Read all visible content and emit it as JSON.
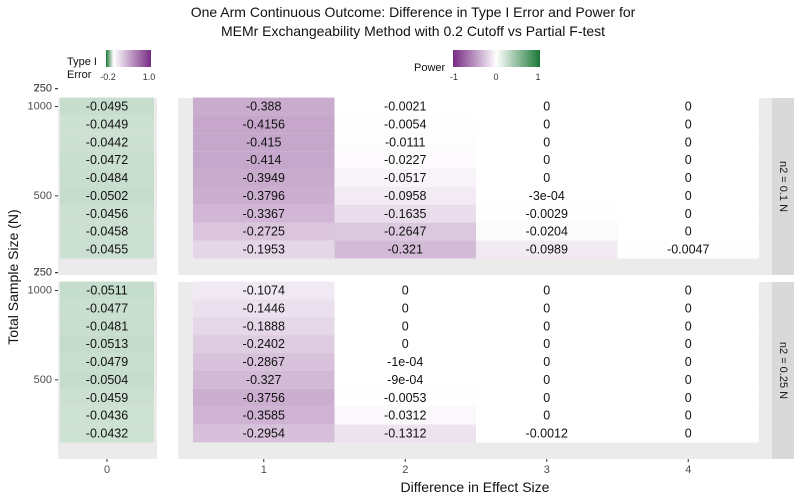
{
  "chart_data": {
    "type": "heatmap",
    "title": "One Arm Continuous Outcome: Difference in Type I Error and Power for",
    "subtitle": "MEMr Exchangeability Method with 0.2 Cutoff vs Partial F-test",
    "xlabel": "Difference in Effect Size",
    "ylabel": "Total Sample Size (N)",
    "y_ticks": [
      1000,
      750,
      500,
      250
    ],
    "rows": [
      1000,
      900,
      800,
      700,
      600,
      500,
      400,
      300,
      200
    ],
    "type1_error": {
      "legend_title": [
        "Type I",
        "Error"
      ],
      "legend_ticks": [
        "-0.2",
        "1.0"
      ],
      "x_categories": [
        "0"
      ]
    },
    "power": {
      "legend_title": "Power",
      "legend_ticks": [
        "-1",
        "0",
        "1"
      ],
      "x_categories": [
        "1",
        "2",
        "3",
        "4"
      ]
    },
    "panels": [
      {
        "strip": "n2 = 0.1 N",
        "type1_values": [
          "-0.0495",
          "-0.0449",
          "-0.0442",
          "-0.0472",
          "-0.0484",
          "-0.0502",
          "-0.0456",
          "-0.0458",
          "-0.0455"
        ],
        "power_values": [
          [
            "-0.388",
            "-0.0021",
            "0",
            "0"
          ],
          [
            "-0.4156",
            "-0.0054",
            "0",
            "0"
          ],
          [
            "-0.415",
            "-0.0111",
            "0",
            "0"
          ],
          [
            "-0.414",
            "-0.0227",
            "0",
            "0"
          ],
          [
            "-0.3949",
            "-0.0517",
            "0",
            "0"
          ],
          [
            "-0.3796",
            "-0.0958",
            "-3e-04",
            "0"
          ],
          [
            "-0.3367",
            "-0.1635",
            "-0.0029",
            "0"
          ],
          [
            "-0.2725",
            "-0.2647",
            "-0.0204",
            "0"
          ],
          [
            "-0.1953",
            "-0.321",
            "-0.0989",
            "-0.0047"
          ]
        ]
      },
      {
        "strip": "n2 = 0.25 N",
        "type1_values": [
          "-0.0511",
          "-0.0477",
          "-0.0481",
          "-0.0513",
          "-0.0479",
          "-0.0504",
          "-0.0459",
          "-0.0436",
          "-0.0432"
        ],
        "power_values": [
          [
            "-0.1074",
            "0",
            "0",
            "0"
          ],
          [
            "-0.1446",
            "0",
            "0",
            "0"
          ],
          [
            "-0.1888",
            "0",
            "0",
            "0"
          ],
          [
            "-0.2402",
            "0",
            "0",
            "0"
          ],
          [
            "-0.2867",
            "-1e-04",
            "0",
            "0"
          ],
          [
            "-0.327",
            "-9e-04",
            "0",
            "0"
          ],
          [
            "-0.3756",
            "-0.0053",
            "0",
            "0"
          ],
          [
            "-0.3585",
            "-0.0312",
            "0",
            "0"
          ],
          [
            "-0.2954",
            "-0.1312",
            "-0.0012",
            "0"
          ]
        ]
      }
    ],
    "colors": {
      "purple": "#762a83",
      "green": "#1b7837",
      "panel_bg": "#ebebeb",
      "strip_bg": "#d9d9d9"
    }
  }
}
